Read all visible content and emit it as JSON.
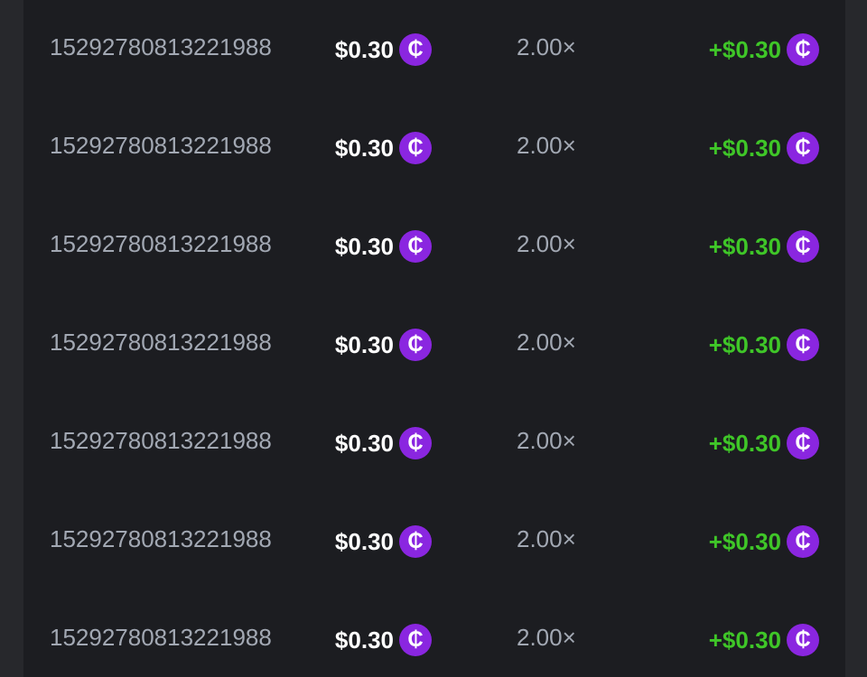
{
  "colors": {
    "background": "#27282c",
    "panel": "#1c1d21",
    "id_text": "#a2a8b3",
    "profit": "#3fc628",
    "coin": "#8a26e0"
  },
  "coin_icon": {
    "name": "coin-icon",
    "glyph": "₵"
  },
  "bets": [
    {
      "id": "15292780813221988",
      "amount": "$0.30",
      "multiplier": "2.00×",
      "payout": "+$0.30"
    },
    {
      "id": "15292780813221988",
      "amount": "$0.30",
      "multiplier": "2.00×",
      "payout": "+$0.30"
    },
    {
      "id": "15292780813221988",
      "amount": "$0.30",
      "multiplier": "2.00×",
      "payout": "+$0.30"
    },
    {
      "id": "15292780813221988",
      "amount": "$0.30",
      "multiplier": "2.00×",
      "payout": "+$0.30"
    },
    {
      "id": "15292780813221988",
      "amount": "$0.30",
      "multiplier": "2.00×",
      "payout": "+$0.30"
    },
    {
      "id": "15292780813221988",
      "amount": "$0.30",
      "multiplier": "2.00×",
      "payout": "+$0.30"
    },
    {
      "id": "15292780813221988",
      "amount": "$0.30",
      "multiplier": "2.00×",
      "payout": "+$0.30"
    }
  ]
}
